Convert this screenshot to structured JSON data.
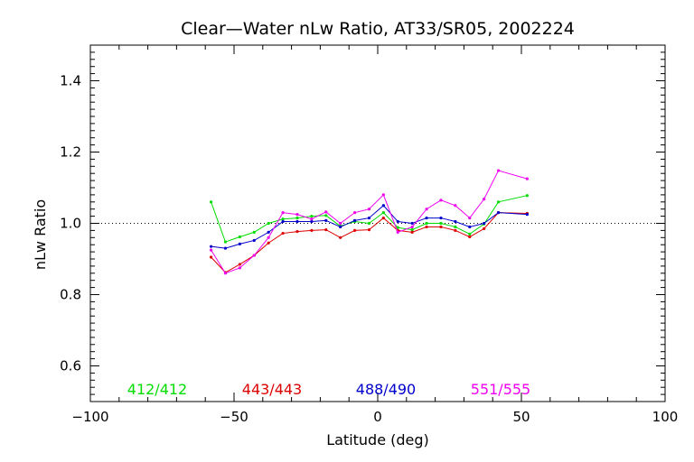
{
  "chart_data": {
    "type": "line",
    "title": "Clear—Water nLw Ratio, AT33/SR05, 2002224",
    "xlabel": "Latitude (deg)",
    "ylabel": "nLw Ratio",
    "xlim": [
      -100,
      100
    ],
    "ylim": [
      0.5,
      1.5
    ],
    "xticks": [
      -100,
      -50,
      0,
      50,
      100
    ],
    "yticks": [
      0.6,
      0.8,
      1.0,
      1.2,
      1.4
    ],
    "reference_line": 1.0,
    "grid": false,
    "x": [
      -58,
      -53,
      -48,
      -43,
      -38,
      -33,
      -28,
      -23,
      -18,
      -13,
      -8,
      -3,
      2,
      7,
      12,
      17,
      22,
      27,
      32,
      37,
      42,
      52
    ],
    "series": [
      {
        "name": "412/412",
        "color": "#00dd00",
        "values": [
          1.06,
          0.948,
          0.962,
          0.975,
          1.0,
          1.012,
          1.015,
          1.02,
          1.022,
          0.992,
          1.005,
          1.0,
          1.03,
          0.988,
          0.982,
          1.0,
          1.0,
          0.99,
          0.97,
          0.998,
          1.06,
          1.078
        ]
      },
      {
        "name": "443/443",
        "color": "#dd0000",
        "values": [
          0.905,
          0.862,
          0.885,
          0.91,
          0.945,
          0.972,
          0.977,
          0.98,
          0.982,
          0.96,
          0.98,
          0.982,
          1.015,
          0.98,
          0.975,
          0.99,
          0.99,
          0.98,
          0.962,
          0.985,
          1.03,
          1.028
        ]
      },
      {
        "name": "488/490",
        "color": "#0000cc",
        "values": [
          0.935,
          0.93,
          0.942,
          0.952,
          0.975,
          1.005,
          1.005,
          1.005,
          1.008,
          0.99,
          1.008,
          1.015,
          1.05,
          1.005,
          1.0,
          1.015,
          1.015,
          1.005,
          0.99,
          1.0,
          1.03,
          1.025
        ]
      },
      {
        "name": "551/555",
        "color": "#ee00ee",
        "values": [
          0.925,
          0.86,
          0.875,
          0.91,
          0.96,
          1.03,
          1.025,
          1.012,
          1.032,
          1.0,
          1.03,
          1.04,
          1.08,
          0.975,
          0.99,
          1.04,
          1.065,
          1.05,
          1.015,
          1.068,
          1.148,
          1.125
        ]
      }
    ]
  }
}
